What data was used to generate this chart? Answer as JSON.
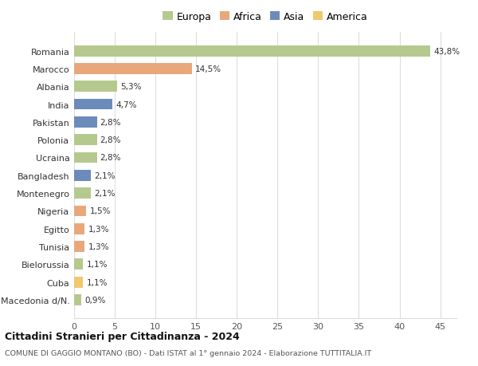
{
  "countries": [
    "Romania",
    "Marocco",
    "Albania",
    "India",
    "Pakistan",
    "Polonia",
    "Ucraina",
    "Bangladesh",
    "Montenegro",
    "Nigeria",
    "Egitto",
    "Tunisia",
    "Bielorussia",
    "Cuba",
    "Macedonia d/N."
  ],
  "values": [
    43.8,
    14.5,
    5.3,
    4.7,
    2.8,
    2.8,
    2.8,
    2.1,
    2.1,
    1.5,
    1.3,
    1.3,
    1.1,
    1.1,
    0.9
  ],
  "labels": [
    "43,8%",
    "14,5%",
    "5,3%",
    "4,7%",
    "2,8%",
    "2,8%",
    "2,8%",
    "2,1%",
    "2,1%",
    "1,5%",
    "1,3%",
    "1,3%",
    "1,1%",
    "1,1%",
    "0,9%"
  ],
  "continents": [
    "Europa",
    "Africa",
    "Europa",
    "Asia",
    "Asia",
    "Europa",
    "Europa",
    "Asia",
    "Europa",
    "Africa",
    "Africa",
    "Africa",
    "Europa",
    "America",
    "Europa"
  ],
  "continent_colors": {
    "Europa": "#b5c98e",
    "Africa": "#e8a87c",
    "Asia": "#6b8cba",
    "America": "#f0c96e"
  },
  "legend_order": [
    "Europa",
    "Africa",
    "Asia",
    "America"
  ],
  "title": "Cittadini Stranieri per Cittadinanza - 2024",
  "subtitle": "COMUNE DI GAGGIO MONTANO (BO) - Dati ISTAT al 1° gennaio 2024 - Elaborazione TUTTITALIA.IT",
  "xlim": [
    0,
    47
  ],
  "xticks": [
    0,
    5,
    10,
    15,
    20,
    25,
    30,
    35,
    40,
    45
  ],
  "background_color": "#ffffff",
  "grid_color": "#dddddd"
}
